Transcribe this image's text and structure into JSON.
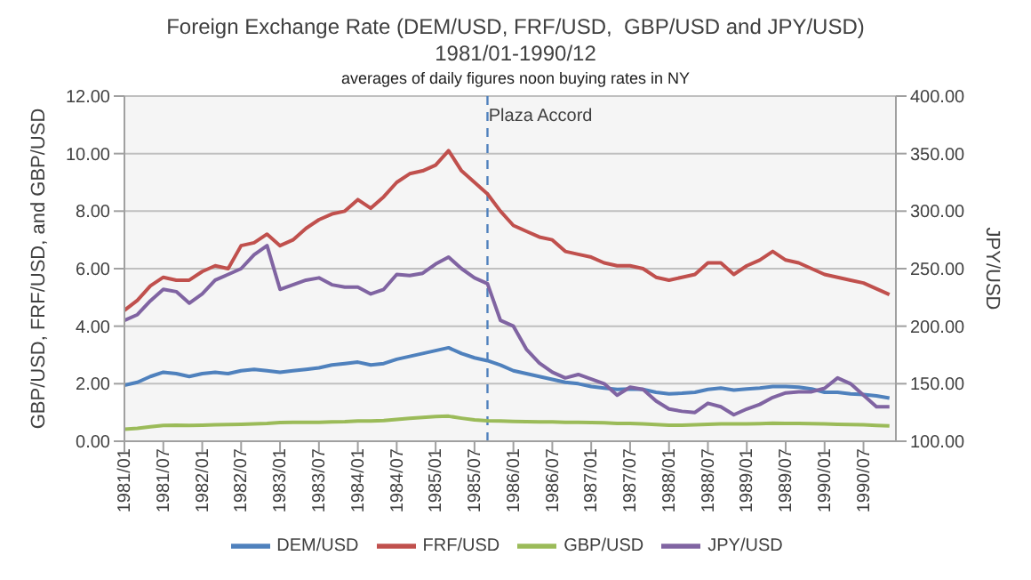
{
  "chart_data": {
    "type": "line",
    "title": "Foreign Exchange Rate (DEM/USD, FRF/USD,  GBP/USD and JPY/USD)",
    "subtitle": "1981/01-1990/12",
    "annotations": [
      "averages of daily figures noon buying rates in NY"
    ],
    "x": [
      "1981-01",
      "1981-03",
      "1981-05",
      "1981-07",
      "1981-09",
      "1981-11",
      "1982-01",
      "1982-03",
      "1982-05",
      "1982-07",
      "1982-09",
      "1982-11",
      "1983-01",
      "1983-03",
      "1983-05",
      "1983-07",
      "1983-09",
      "1983-11",
      "1984-01",
      "1984-03",
      "1984-05",
      "1984-07",
      "1984-09",
      "1984-11",
      "1985-01",
      "1985-03",
      "1985-05",
      "1985-07",
      "1985-09",
      "1985-11",
      "1986-01",
      "1986-03",
      "1986-05",
      "1986-07",
      "1986-09",
      "1986-11",
      "1987-01",
      "1987-03",
      "1987-05",
      "1987-07",
      "1987-09",
      "1987-11",
      "1988-01",
      "1988-03",
      "1988-05",
      "1988-07",
      "1988-09",
      "1988-11",
      "1989-01",
      "1989-03",
      "1989-05",
      "1989-07",
      "1989-09",
      "1989-11",
      "1990-01",
      "1990-03",
      "1990-05",
      "1990-07",
      "1990-09",
      "1990-11"
    ],
    "xlim": [
      "1981-01",
      "1990-12"
    ],
    "xticks": [
      {
        "value": "1981-01",
        "label": "1981/01"
      },
      {
        "value": "1981-07",
        "label": "1981/07"
      },
      {
        "value": "1982-01",
        "label": "1982/01"
      },
      {
        "value": "1982-07",
        "label": "1982/07"
      },
      {
        "value": "1983-01",
        "label": "1983/01"
      },
      {
        "value": "1983-07",
        "label": "1983/07"
      },
      {
        "value": "1984-01",
        "label": "1984/01"
      },
      {
        "value": "1984-07",
        "label": "1984/07"
      },
      {
        "value": "1985-01",
        "label": "1985/01"
      },
      {
        "value": "1985-07",
        "label": "1985/07"
      },
      {
        "value": "1986-01",
        "label": "1986/01"
      },
      {
        "value": "1986-07",
        "label": "1986/07"
      },
      {
        "value": "1987-01",
        "label": "1987/01"
      },
      {
        "value": "1987-07",
        "label": "1987/07"
      },
      {
        "value": "1988-01",
        "label": "1988/01"
      },
      {
        "value": "1988-07",
        "label": "1988/07"
      },
      {
        "value": "1989-01",
        "label": "1989/01"
      },
      {
        "value": "1989-07",
        "label": "1989/07"
      },
      {
        "value": "1990-01",
        "label": "1990/01"
      },
      {
        "value": "1990-07",
        "label": "1990/07"
      }
    ],
    "ylabel": "GBP/USD, FRF/USD,  and GBP/USD",
    "y2label": "JPY/USD",
    "ylim": [
      0,
      12
    ],
    "yticks": [
      {
        "value": 0,
        "label": "0.00"
      },
      {
        "value": 2,
        "label": "2.00"
      },
      {
        "value": 4,
        "label": "4.00"
      },
      {
        "value": 6,
        "label": "6.00"
      },
      {
        "value": 8,
        "label": "8.00"
      },
      {
        "value": 10,
        "label": "10.00"
      },
      {
        "value": 12,
        "label": "12.00"
      }
    ],
    "y2lim": [
      100,
      400
    ],
    "y2ticks": [
      {
        "value": 100,
        "label": "100.00"
      },
      {
        "value": 150,
        "label": "150.00"
      },
      {
        "value": 200,
        "label": "200.00"
      },
      {
        "value": 250,
        "label": "250.00"
      },
      {
        "value": 300,
        "label": "300.00"
      },
      {
        "value": 350,
        "label": "350.00"
      },
      {
        "value": 400,
        "label": "400.00"
      }
    ],
    "grid": "y",
    "legend": "bottom",
    "marker": "none",
    "line_style": "solid",
    "ref_lines": [
      {
        "axis": "x",
        "value": "1985-09",
        "label": "Plaza Accord",
        "color": "#4f81bd",
        "line_style": "dashed"
      }
    ],
    "series": [
      {
        "name": "DEM/USD",
        "color": "#4f81bd",
        "values": [
          1.95,
          2.05,
          2.25,
          2.4,
          2.35,
          2.25,
          2.35,
          2.4,
          2.35,
          2.45,
          2.5,
          2.45,
          2.4,
          2.45,
          2.5,
          2.55,
          2.65,
          2.7,
          2.75,
          2.65,
          2.7,
          2.85,
          2.95,
          3.05,
          3.15,
          3.25,
          3.05,
          2.9,
          2.8,
          2.65,
          2.45,
          2.35,
          2.25,
          2.15,
          2.05,
          2.0,
          1.9,
          1.85,
          1.8,
          1.82,
          1.8,
          1.7,
          1.65,
          1.67,
          1.7,
          1.8,
          1.85,
          1.78,
          1.82,
          1.85,
          1.9,
          1.9,
          1.88,
          1.82,
          1.7,
          1.7,
          1.65,
          1.62,
          1.58,
          1.5
        ]
      },
      {
        "name": "FRF/USD",
        "color": "#c0504d",
        "values": [
          4.55,
          4.9,
          5.4,
          5.7,
          5.6,
          5.6,
          5.9,
          6.1,
          6.0,
          6.8,
          6.9,
          7.2,
          6.8,
          7.0,
          7.4,
          7.7,
          7.9,
          8.0,
          8.4,
          8.1,
          8.5,
          9.0,
          9.3,
          9.4,
          9.6,
          10.1,
          9.4,
          9.0,
          8.6,
          8.0,
          7.5,
          7.3,
          7.1,
          7.0,
          6.6,
          6.5,
          6.4,
          6.2,
          6.1,
          6.1,
          6.0,
          5.7,
          5.6,
          5.7,
          5.8,
          6.2,
          6.2,
          5.8,
          6.1,
          6.3,
          6.6,
          6.3,
          6.2,
          6.0,
          5.8,
          5.7,
          5.6,
          5.5,
          5.3,
          5.1
        ]
      },
      {
        "name": "GBP/USD",
        "color": "#9bbb59",
        "values": [
          0.42,
          0.45,
          0.5,
          0.55,
          0.56,
          0.55,
          0.56,
          0.57,
          0.58,
          0.59,
          0.6,
          0.62,
          0.65,
          0.66,
          0.66,
          0.66,
          0.67,
          0.68,
          0.7,
          0.7,
          0.72,
          0.76,
          0.8,
          0.83,
          0.86,
          0.87,
          0.8,
          0.74,
          0.71,
          0.7,
          0.69,
          0.68,
          0.67,
          0.67,
          0.66,
          0.66,
          0.65,
          0.64,
          0.62,
          0.62,
          0.6,
          0.58,
          0.56,
          0.56,
          0.57,
          0.59,
          0.6,
          0.6,
          0.6,
          0.61,
          0.63,
          0.62,
          0.62,
          0.61,
          0.6,
          0.59,
          0.58,
          0.57,
          0.55,
          0.53
        ]
      },
      {
        "name": "JPY/USD",
        "color": "#8064a2",
        "axis": "y2",
        "values": [
          205,
          210,
          222,
          232,
          230,
          220,
          228,
          240,
          245,
          250,
          262,
          270,
          232,
          236,
          240,
          242,
          236,
          234,
          234,
          228,
          232,
          245,
          244,
          246,
          254,
          260,
          250,
          242,
          237,
          205,
          200,
          180,
          168,
          160,
          155,
          158,
          154,
          150,
          140,
          147,
          145,
          135,
          128,
          126,
          125,
          133,
          130,
          123,
          128,
          132,
          138,
          142,
          143,
          143,
          146,
          155,
          150,
          140,
          130,
          130
        ]
      }
    ]
  }
}
